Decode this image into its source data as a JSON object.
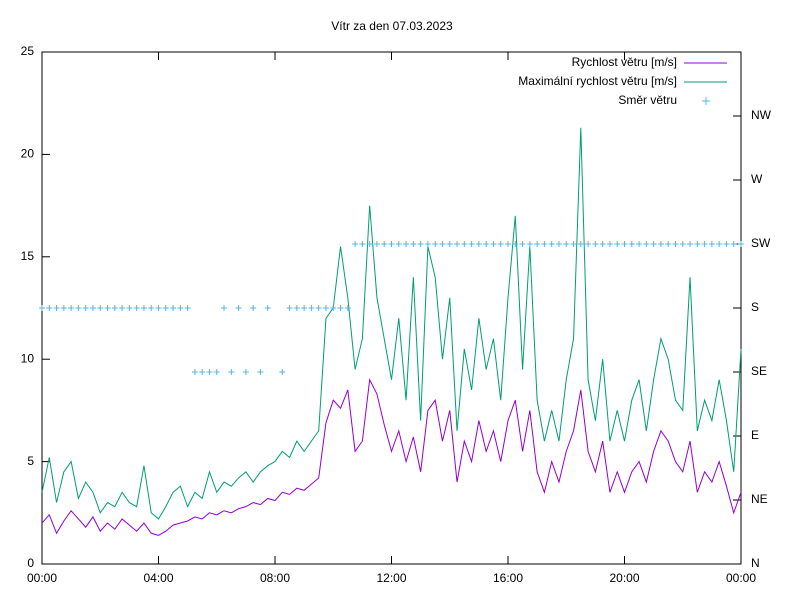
{
  "chart_data": {
    "type": "line",
    "title": "Vítr za den 07.03.2023",
    "x": [
      0,
      0.25,
      0.5,
      0.75,
      1,
      1.25,
      1.5,
      1.75,
      2,
      2.25,
      2.5,
      2.75,
      3,
      3.25,
      3.5,
      3.75,
      4,
      4.25,
      4.5,
      4.75,
      5,
      5.25,
      5.5,
      5.75,
      6,
      6.25,
      6.5,
      6.75,
      7,
      7.25,
      7.5,
      7.75,
      8,
      8.25,
      8.5,
      8.75,
      9,
      9.25,
      9.5,
      9.75,
      10,
      10.25,
      10.5,
      10.75,
      11,
      11.25,
      11.5,
      11.75,
      12,
      12.25,
      12.5,
      12.75,
      13,
      13.25,
      13.5,
      13.75,
      14,
      14.25,
      14.5,
      14.75,
      15,
      15.25,
      15.5,
      15.75,
      16,
      16.25,
      16.5,
      16.75,
      17,
      17.25,
      17.5,
      17.75,
      18,
      18.25,
      18.5,
      18.75,
      19,
      19.25,
      19.5,
      19.75,
      20,
      20.25,
      20.5,
      20.75,
      21,
      21.25,
      21.5,
      21.75,
      22,
      22.25,
      22.5,
      22.75,
      23,
      23.25,
      23.5,
      23.75,
      24
    ],
    "series": [
      {
        "name": "Rychlost větru [m/s]",
        "color": "#9400d3",
        "style": "lines",
        "values": [
          2.0,
          2.4,
          1.5,
          2.1,
          2.6,
          2.2,
          1.8,
          2.3,
          1.6,
          2.0,
          1.7,
          2.2,
          1.9,
          1.6,
          2.0,
          1.5,
          1.4,
          1.6,
          1.9,
          2.0,
          2.1,
          2.3,
          2.2,
          2.5,
          2.4,
          2.6,
          2.5,
          2.7,
          2.8,
          3.0,
          2.9,
          3.2,
          3.1,
          3.5,
          3.4,
          3.7,
          3.6,
          3.9,
          4.2,
          6.9,
          8.0,
          7.6,
          8.5,
          5.5,
          6.0,
          9.0,
          8.3,
          6.8,
          5.5,
          6.5,
          5.0,
          6.2,
          4.5,
          7.5,
          8.0,
          6.0,
          7.5,
          4.0,
          6.0,
          5.0,
          7.0,
          5.5,
          6.5,
          5.0,
          7.0,
          8.0,
          5.5,
          7.5,
          4.5,
          3.5,
          5.0,
          4.0,
          5.5,
          6.5,
          8.5,
          5.5,
          4.5,
          6.0,
          3.5,
          4.5,
          3.5,
          4.5,
          5.0,
          4.0,
          5.5,
          6.5,
          6.0,
          5.0,
          4.5,
          6.0,
          3.5,
          4.5,
          4.0,
          5.0,
          3.8,
          2.5,
          3.5
        ]
      },
      {
        "name": "Maximální rychlost větru [m/s]",
        "color": "#009e73",
        "style": "lines",
        "values": [
          3.5,
          5.2,
          3.0,
          4.5,
          5.0,
          3.2,
          4.0,
          3.5,
          2.5,
          3.0,
          2.8,
          3.5,
          3.0,
          2.8,
          4.8,
          2.5,
          2.2,
          2.8,
          3.5,
          3.8,
          2.8,
          3.5,
          3.2,
          4.5,
          3.5,
          4.0,
          3.8,
          4.2,
          4.5,
          4.0,
          4.5,
          4.8,
          5.0,
          5.5,
          5.2,
          6.0,
          5.5,
          6.0,
          6.5,
          12.0,
          12.5,
          15.5,
          13.0,
          9.5,
          11.0,
          17.5,
          13.0,
          11.0,
          9.0,
          12.0,
          8.0,
          14.0,
          7.0,
          15.5,
          14.0,
          10.0,
          13.0,
          6.5,
          10.5,
          8.5,
          12.0,
          9.5,
          11.0,
          8.0,
          13.0,
          17.0,
          9.5,
          15.5,
          8.0,
          6.0,
          7.5,
          6.0,
          9.0,
          11.0,
          21.3,
          9.0,
          7.0,
          10.0,
          6.0,
          7.5,
          6.0,
          8.0,
          9.0,
          6.5,
          9.0,
          11.0,
          10.0,
          8.0,
          7.5,
          14.0,
          6.5,
          8.0,
          7.0,
          9.0,
          7.0,
          4.5,
          10.5
        ]
      },
      {
        "name": "Směr větru",
        "color": "#56b4e9",
        "style": "points",
        "axis": "y2",
        "values": [
          180,
          180,
          180,
          180,
          180,
          180,
          180,
          180,
          180,
          180,
          180,
          180,
          180,
          180,
          180,
          180,
          180,
          180,
          180,
          180,
          180,
          135,
          135,
          135,
          135,
          180,
          135,
          180,
          135,
          180,
          135,
          180,
          null,
          135,
          180,
          180,
          180,
          180,
          180,
          180,
          180,
          180,
          180,
          225,
          225,
          225,
          225,
          225,
          225,
          225,
          225,
          225,
          225,
          225,
          225,
          225,
          225,
          225,
          225,
          225,
          225,
          225,
          225,
          225,
          225,
          225,
          225,
          225,
          225,
          225,
          225,
          225,
          225,
          225,
          225,
          225,
          225,
          225,
          225,
          225,
          225,
          225,
          225,
          225,
          225,
          225,
          225,
          225,
          225,
          225,
          225,
          225,
          225,
          225,
          225,
          225,
          225
        ]
      }
    ],
    "xlim": [
      0,
      24
    ],
    "xticks": [
      {
        "value": 0,
        "label": "00:00"
      },
      {
        "value": 4,
        "label": "04:00"
      },
      {
        "value": 8,
        "label": "08:00"
      },
      {
        "value": 12,
        "label": "12:00"
      },
      {
        "value": 16,
        "label": "16:00"
      },
      {
        "value": 20,
        "label": "20:00"
      },
      {
        "value": 24,
        "label": "00:00"
      }
    ],
    "ylim": [
      0,
      25
    ],
    "yticks": [
      0,
      5,
      10,
      15,
      20,
      25
    ],
    "y2lim": [
      0,
      360
    ],
    "y2ticks": [
      {
        "value": 0,
        "label": "N"
      },
      {
        "value": 45,
        "label": "NE"
      },
      {
        "value": 90,
        "label": "E"
      },
      {
        "value": 135,
        "label": "SE"
      },
      {
        "value": 180,
        "label": "S"
      },
      {
        "value": 225,
        "label": "SW"
      },
      {
        "value": 270,
        "label": "W"
      },
      {
        "value": 315,
        "label": "NW"
      }
    ],
    "legend": "top-right"
  }
}
